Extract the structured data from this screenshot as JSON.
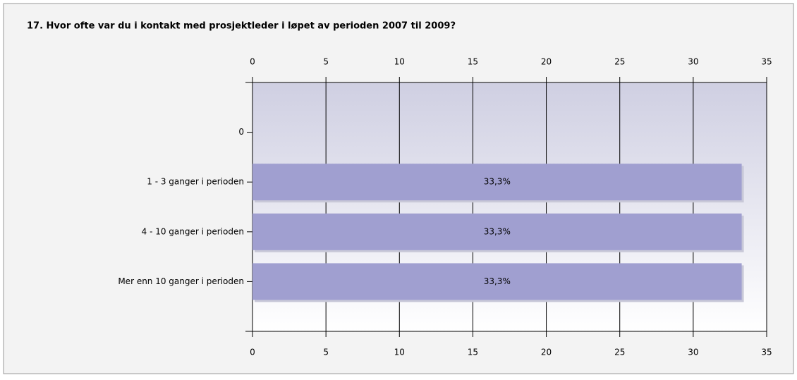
{
  "chart_data": {
    "type": "hbar",
    "title": "17. Hvor ofte var du i kontakt med prosjektleder i løpet av perioden 2007 til 2009?",
    "categories": [
      "0",
      "1 - 3 ganger i perioden",
      "4 - 10 ganger i perioden",
      "Mer enn 10 ganger i perioden"
    ],
    "values": [
      0,
      33.3,
      33.3,
      33.3
    ],
    "value_labels": [
      null,
      "33,3%",
      "33,3%",
      "33,3%"
    ],
    "color": "#a09fd0",
    "xlim": [
      0,
      35
    ],
    "xticks": [
      0,
      5,
      10,
      15,
      20,
      25,
      30,
      35
    ],
    "grid": true
  }
}
